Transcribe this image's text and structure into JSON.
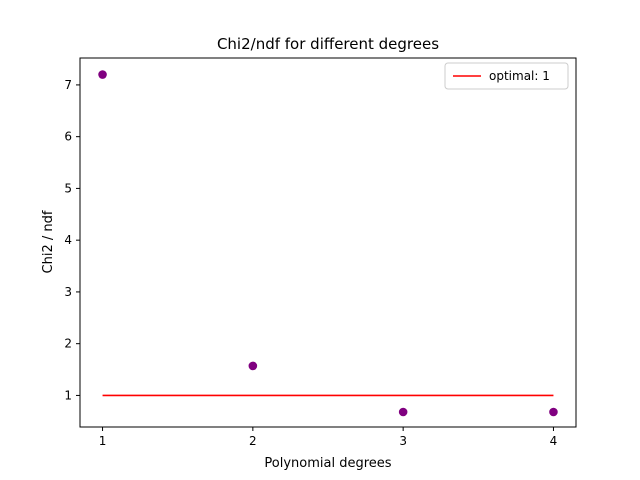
{
  "chart_data": {
    "type": "scatter",
    "title": "Chi2/ndf for different degrees",
    "xlabel": "Polynomial degrees",
    "ylabel": "Chi2 / ndf",
    "xlim": [
      0.85,
      4.15
    ],
    "ylim": [
      0.39,
      7.52
    ],
    "grid": false,
    "legend_placement": "top-right",
    "x_ticks": [
      1,
      2,
      3,
      4
    ],
    "y_ticks": [
      1,
      2,
      3,
      4,
      5,
      6,
      7
    ],
    "series": [
      {
        "type": "scatter",
        "color": "#800080",
        "x": [
          1,
          2,
          3,
          4
        ],
        "y": [
          7.2,
          1.57,
          0.68,
          0.68
        ]
      },
      {
        "type": "line",
        "name": "optimal: 1",
        "color": "#ff0000",
        "x": [
          1,
          4
        ],
        "y": [
          1,
          1
        ]
      }
    ]
  }
}
